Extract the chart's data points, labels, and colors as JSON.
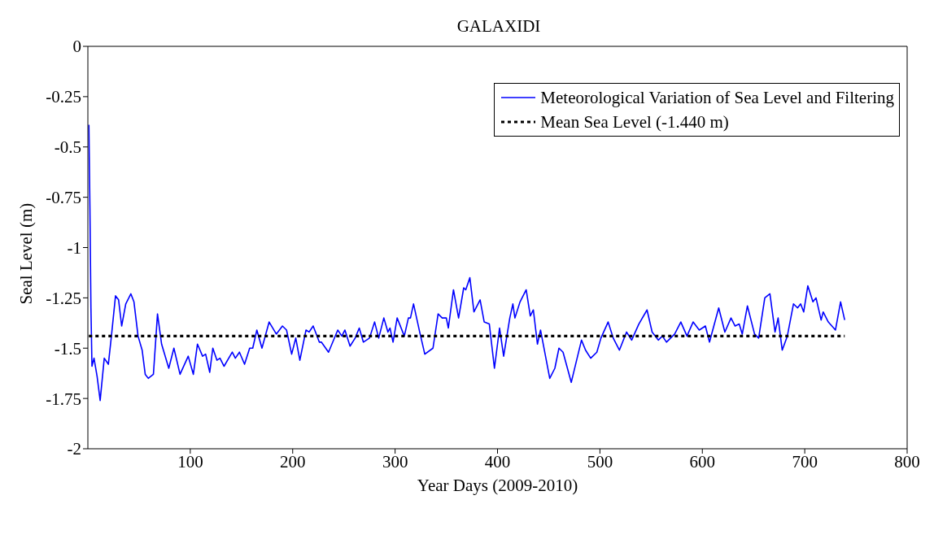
{
  "chart_data": {
    "type": "line",
    "title": "GALAXIDI",
    "xlabel": "Year Days (2009-2010)",
    "ylabel": "Seal Level (m)",
    "xlim": [
      0,
      800
    ],
    "xticks": [
      100,
      200,
      300,
      400,
      500,
      600,
      700,
      800
    ],
    "ylim": [
      -2,
      0
    ],
    "yticks": [
      0,
      -0.25,
      -0.5,
      -0.75,
      -1,
      -1.25,
      -1.5,
      -1.75,
      -2
    ],
    "legend": "top right",
    "marker": "none",
    "series": [
      {
        "name": "Meteorological Variation of Sea Level and Filtering",
        "color": "#0000ff",
        "line_style": "solid",
        "x": [
          1,
          2,
          3,
          4,
          6,
          9,
          12,
          16,
          20,
          23,
          27,
          30,
          33,
          37,
          42,
          45,
          49,
          53,
          56,
          59,
          64,
          68,
          72,
          79,
          84,
          90,
          98,
          103,
          107,
          112,
          115,
          119,
          122,
          126,
          129,
          133,
          141,
          144,
          148,
          153,
          158,
          161,
          165,
          170,
          177,
          184,
          190,
          194,
          199,
          203,
          207,
          213,
          216,
          220,
          226,
          228,
          235,
          244,
          248,
          251,
          256,
          261,
          265,
          269,
          275,
          280,
          284,
          289,
          293,
          295,
          298,
          302,
          309,
          313,
          315,
          318,
          324,
          329,
          337,
          342,
          346,
          350,
          352,
          357,
          362,
          367,
          369,
          373,
          377,
          383,
          387,
          392,
          397,
          402,
          406,
          412,
          415,
          417,
          422,
          428,
          432,
          435,
          439,
          442,
          451,
          456,
          460,
          464,
          472,
          482,
          486,
          491,
          497,
          501,
          508,
          513,
          519,
          526,
          531,
          538,
          546,
          551,
          557,
          561,
          565,
          573,
          579,
          585,
          591,
          597,
          603,
          607,
          616,
          622,
          628,
          632,
          636,
          639,
          644,
          651,
          655,
          661,
          666,
          671,
          674,
          678,
          683,
          689,
          693,
          696,
          699,
          703,
          708,
          711,
          716,
          718,
          723,
          730,
          735,
          739
        ],
        "values": [
          -0.39,
          -0.8,
          -1.3,
          -1.59,
          -1.55,
          -1.64,
          -1.76,
          -1.55,
          -1.58,
          -1.44,
          -1.24,
          -1.26,
          -1.39,
          -1.28,
          -1.23,
          -1.27,
          -1.44,
          -1.51,
          -1.63,
          -1.65,
          -1.63,
          -1.33,
          -1.48,
          -1.6,
          -1.5,
          -1.63,
          -1.54,
          -1.63,
          -1.48,
          -1.54,
          -1.53,
          -1.62,
          -1.5,
          -1.56,
          -1.55,
          -1.59,
          -1.52,
          -1.55,
          -1.52,
          -1.58,
          -1.5,
          -1.5,
          -1.41,
          -1.5,
          -1.37,
          -1.43,
          -1.39,
          -1.41,
          -1.53,
          -1.45,
          -1.56,
          -1.41,
          -1.42,
          -1.39,
          -1.47,
          -1.47,
          -1.52,
          -1.41,
          -1.44,
          -1.41,
          -1.49,
          -1.45,
          -1.4,
          -1.47,
          -1.45,
          -1.37,
          -1.45,
          -1.35,
          -1.42,
          -1.4,
          -1.47,
          -1.35,
          -1.44,
          -1.35,
          -1.35,
          -1.28,
          -1.42,
          -1.53,
          -1.5,
          -1.33,
          -1.35,
          -1.35,
          -1.4,
          -1.21,
          -1.35,
          -1.2,
          -1.21,
          -1.15,
          -1.32,
          -1.26,
          -1.37,
          -1.38,
          -1.6,
          -1.4,
          -1.54,
          -1.35,
          -1.28,
          -1.35,
          -1.27,
          -1.21,
          -1.34,
          -1.31,
          -1.48,
          -1.41,
          -1.65,
          -1.6,
          -1.5,
          -1.52,
          -1.67,
          -1.46,
          -1.51,
          -1.55,
          -1.52,
          -1.45,
          -1.37,
          -1.45,
          -1.51,
          -1.42,
          -1.46,
          -1.38,
          -1.31,
          -1.42,
          -1.46,
          -1.44,
          -1.47,
          -1.43,
          -1.37,
          -1.44,
          -1.37,
          -1.41,
          -1.39,
          -1.47,
          -1.3,
          -1.42,
          -1.35,
          -1.39,
          -1.38,
          -1.43,
          -1.29,
          -1.43,
          -1.45,
          -1.25,
          -1.23,
          -1.42,
          -1.35,
          -1.51,
          -1.44,
          -1.28,
          -1.3,
          -1.28,
          -1.32,
          -1.19,
          -1.27,
          -1.25,
          -1.36,
          -1.32,
          -1.37,
          -1.41,
          -1.27,
          -1.36
        ]
      },
      {
        "name": "Mean Sea Level (-1.440 m)",
        "color": "#000000",
        "line_style": "dotted",
        "x": [
          1,
          739
        ],
        "values": [
          -1.44,
          -1.44
        ]
      }
    ]
  }
}
